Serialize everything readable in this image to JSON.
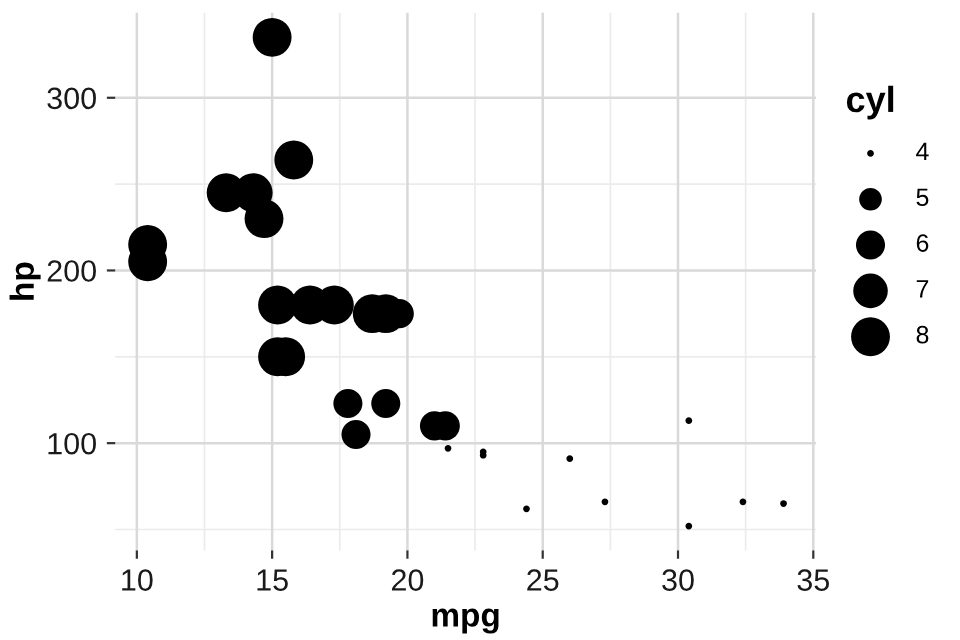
{
  "chart_data": {
    "type": "bubble",
    "xlabel": "mpg",
    "ylabel": "hp",
    "legend_title": "cyl",
    "x": [
      21.0,
      22.8,
      21.4,
      18.7,
      18.1,
      14.3,
      24.4,
      22.8,
      19.2,
      17.8,
      16.4,
      17.3,
      15.2,
      10.4,
      10.4,
      14.7,
      32.4,
      30.4,
      33.9,
      21.5,
      15.5,
      15.2,
      13.3,
      19.2,
      27.3,
      26.0,
      30.4,
      15.8,
      19.7,
      15.0
    ],
    "series": [
      {
        "color": "#000000",
        "values": [
          110,
          93,
          110,
          175,
          105,
          245,
          62,
          95,
          123,
          123,
          180,
          180,
          180,
          205,
          215,
          230,
          66,
          52,
          65,
          97,
          150,
          150,
          245,
          175,
          66,
          91,
          113,
          264,
          175,
          335
        ],
        "sizes": [
          0.56,
          0.03,
          0.56,
          1,
          0.56,
          1,
          0.03,
          0.03,
          0.56,
          0.56,
          1,
          1,
          1,
          1,
          1,
          1,
          0.03,
          0.03,
          0.03,
          0.03,
          1,
          1,
          1,
          1,
          0.03,
          0.03,
          0.03,
          1,
          0.56,
          1
        ]
      }
    ],
    "size_legend": [
      {
        "value": 0.03,
        "label": "4"
      },
      {
        "value": 0.34,
        "label": "5"
      },
      {
        "value": 0.56,
        "label": "6"
      },
      {
        "value": 0.79,
        "label": "7"
      },
      {
        "value": 1,
        "label": "8"
      }
    ],
    "xlim": [
      9.2,
      35.1
    ],
    "ylim": [
      37.9,
      349.2
    ],
    "xticks": [
      10,
      15,
      20,
      25,
      30,
      35
    ],
    "yticks": [
      100,
      200,
      300
    ],
    "grid": true,
    "marker": "circle"
  }
}
